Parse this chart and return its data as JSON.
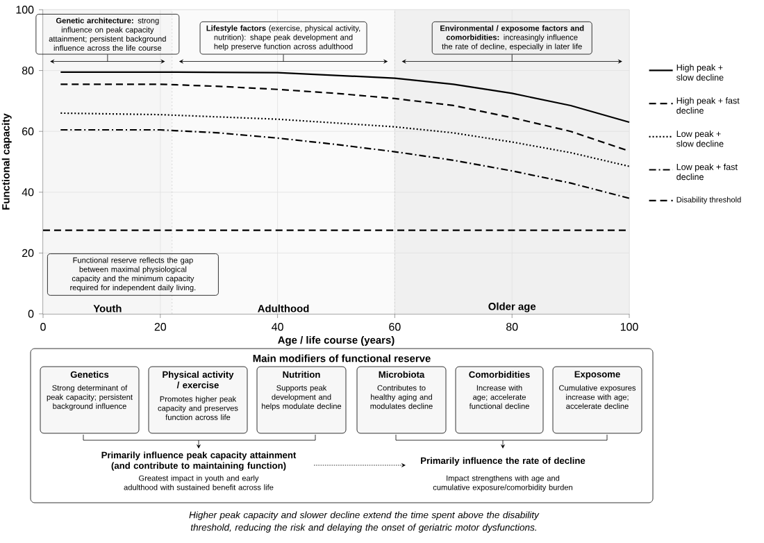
{
  "chart_data": {
    "type": "line",
    "xlabel": "Age / life course (years)",
    "ylabel": "Functional capacity",
    "xlim": [
      0,
      100
    ],
    "ylim": [
      0,
      100
    ],
    "xticks": [
      0,
      20,
      40,
      60,
      80,
      100
    ],
    "yticks": [
      0,
      20,
      40,
      60,
      80,
      100
    ],
    "grid": true,
    "legend": "right",
    "series": [
      {
        "name": "High peak + slow decline",
        "color": "#000000",
        "line_style": "solid",
        "x": [
          3,
          20,
          40,
          60,
          70,
          80,
          90,
          100
        ],
        "values": [
          79.5,
          79.5,
          79.3,
          77.5,
          75.5,
          72.5,
          68.5,
          63
        ]
      },
      {
        "name": "High peak + fast decline",
        "color": "#000000",
        "line_style": "dashed",
        "x": [
          3,
          20,
          30,
          40,
          50,
          60,
          70,
          80,
          90,
          100
        ],
        "values": [
          75.5,
          75.5,
          74.8,
          73.8,
          72.5,
          70.8,
          68.5,
          64.5,
          60,
          53.5
        ]
      },
      {
        "name": "Low peak + slow decline",
        "color": "#000000",
        "line_style": "dotted",
        "x": [
          3,
          20,
          40,
          60,
          70,
          80,
          90,
          100
        ],
        "values": [
          66,
          65.5,
          64,
          61.5,
          59.5,
          56.5,
          53,
          48.5
        ]
      },
      {
        "name": "Low peak + fast decline",
        "color": "#000000",
        "line_style": "dashdot",
        "x": [
          3,
          20,
          30,
          40,
          50,
          60,
          70,
          80,
          90,
          100
        ],
        "values": [
          60.5,
          60.5,
          59.5,
          57.8,
          55.7,
          53.3,
          50.5,
          47,
          43,
          38
        ]
      }
    ],
    "ref_lines": [
      {
        "axis": "y",
        "value": 27.5,
        "label": "Disability threshold",
        "color": "#000000",
        "line_style": "dashed"
      },
      {
        "axis": "x",
        "value": 22,
        "color": "#cccccc",
        "line_style": "dotted"
      },
      {
        "axis": "x",
        "value": 60,
        "color": "#cccccc",
        "line_style": "dotted"
      }
    ],
    "bands": [
      {
        "axis": "x",
        "from": 0,
        "to": 22,
        "label": "Youth",
        "color": "#f6f6f6"
      },
      {
        "axis": "x",
        "from": 22,
        "to": 60,
        "label": "Adulthood",
        "color": "#fafafa"
      },
      {
        "axis": "x",
        "from": 60,
        "to": 100,
        "label": "Older age",
        "color": "#f0f0f0"
      }
    ],
    "annotations": [
      "**Genetic architecture:** strong influence on peak capacity attainment; persistent background influence across the life course",
      "**Lifestyle factors** (exercise, physical activity, nutrition): shape peak development and help preserve function across adulthood",
      "**Environmental / exposome factors and comorbidities:** increasingly influence the rate of decline, especially in later life",
      "Functional reserve reflects the gap between maximal physiological capacity and the minimum capacity required for independent daily living.",
      "Main modifiers of functional reserve",
      "Genetics",
      "Strong determinant of peak capacity; persistent background influence",
      "Physical activity / exercise",
      "Promotes higher peak capacity and preserves function across life",
      "Nutrition",
      "Supports peak development and helps modulate decline",
      "Microbiota",
      "Contributes to healthy aging and modulates decline",
      "Comorbidities",
      "Increase with age; accelerate functional decline",
      "Exposome",
      "Cumulative exposures increase with age; accelerate decline",
      "Primarily influence peak capacity attainment (and contribute to maintaining function)",
      "Greatest impact in youth and early adulthood with sustained benefit across life",
      "Primarily influence the rate of decline",
      "Impact strengthens with age and cumulative exposure/comorbidity burden",
      "Higher peak capacity and slower decline extend the time spent above the disability threshold, reducing the risk and delaying the onset of geriatric motor dysfunctions."
    ]
  }
}
